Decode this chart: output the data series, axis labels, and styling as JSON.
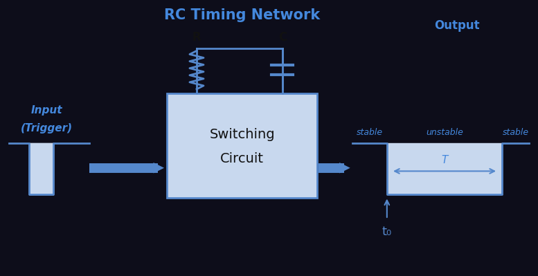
{
  "title": "RC Timing Network",
  "title_color": "#4488DD",
  "title_fontsize": 15,
  "bg_color": "#0d0d1a",
  "box_fill": "#c8d8ee",
  "box_edge": "#5588CC",
  "line_color": "#5588CC",
  "arrow_color": "#5588CC",
  "text_color_blue": "#4488DD",
  "text_color_black": "#111111",
  "signal_fill": "#c8d8ee",
  "R_label": "R",
  "C_label": "C",
  "input_label1": "Input",
  "input_label2": "(Trigger)",
  "output_label": "Output",
  "box_label1": "Switching",
  "box_label2": "Circuit",
  "stable_label": "stable",
  "unstable_label": "unstable",
  "T_label": "T",
  "t0_label": "t₀",
  "figsize": [
    7.77,
    3.99
  ],
  "dpi": 100,
  "xlim": [
    0,
    10
  ],
  "ylim": [
    0,
    5.5
  ]
}
